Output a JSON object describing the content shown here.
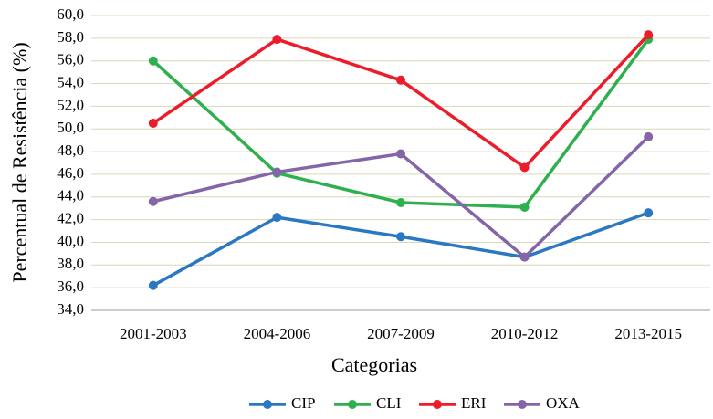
{
  "chart_data": {
    "type": "line",
    "y_label": "Percentual de Resistência (%)",
    "x_label": "Categorias",
    "categories": [
      "2001-2003",
      "2004-2006",
      "2007-2009",
      "2010-2012",
      "2013-2015"
    ],
    "series": [
      {
        "name": "CIP",
        "color": "#2a78c2",
        "values": [
          36.2,
          42.2,
          40.5,
          38.7,
          42.6
        ]
      },
      {
        "name": "CLI",
        "color": "#2eb04f",
        "values": [
          56.0,
          46.1,
          43.5,
          43.1,
          57.9
        ]
      },
      {
        "name": "ERI",
        "color": "#ec1c2a",
        "values": [
          50.5,
          57.9,
          54.3,
          46.6,
          58.3
        ]
      },
      {
        "name": "OXA",
        "color": "#8466a8",
        "values": [
          43.6,
          46.2,
          47.8,
          38.7,
          49.3
        ]
      }
    ],
    "ylim": [
      34,
      60
    ],
    "yticks": [
      {
        "value": 34,
        "label": "34,0"
      },
      {
        "value": 36,
        "label": "36,0"
      },
      {
        "value": 38,
        "label": "38,0"
      },
      {
        "value": 40,
        "label": "40,0"
      },
      {
        "value": 42,
        "label": "42,0"
      },
      {
        "value": 44,
        "label": "44,0"
      },
      {
        "value": 46,
        "label": "46,0"
      },
      {
        "value": 48,
        "label": "48,0"
      },
      {
        "value": 50,
        "label": "50,0"
      },
      {
        "value": 52,
        "label": "52,0"
      },
      {
        "value": 54,
        "label": "54,0"
      },
      {
        "value": 56,
        "label": "56,0"
      },
      {
        "value": 58,
        "label": "58,0"
      },
      {
        "value": 60,
        "label": "60,0"
      }
    ],
    "grid": true,
    "legend": "bottom"
  }
}
